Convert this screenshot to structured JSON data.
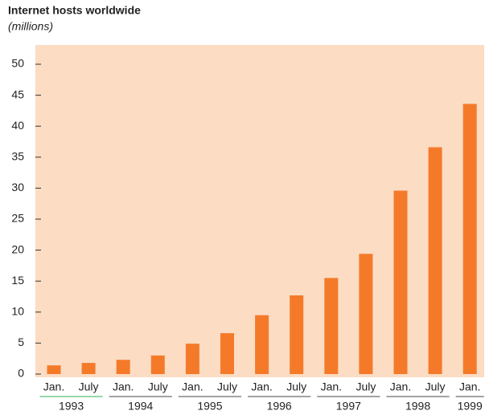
{
  "chart_data": {
    "type": "bar",
    "title": "Internet hosts worldwide",
    "subtitle": "(millions)",
    "color": "#f47a2a",
    "background": "#fcdcc3",
    "groups": [
      {
        "label": "1993",
        "categories": [
          "Jan.",
          "July"
        ],
        "values": [
          1.4,
          1.8
        ]
      },
      {
        "label": "1994",
        "categories": [
          "Jan.",
          "July"
        ],
        "values": [
          2.3,
          3.0
        ]
      },
      {
        "label": "1995",
        "categories": [
          "Jan.",
          "July"
        ],
        "values": [
          4.9,
          6.6
        ]
      },
      {
        "label": "1996",
        "categories": [
          "Jan.",
          "July"
        ],
        "values": [
          9.5,
          12.7
        ]
      },
      {
        "label": "1997",
        "categories": [
          "Jan.",
          "July"
        ],
        "values": [
          15.5,
          19.4
        ]
      },
      {
        "label": "1998",
        "categories": [
          "Jan.",
          "July"
        ],
        "values": [
          29.6,
          36.6
        ]
      },
      {
        "label": "1999",
        "categories": [
          "Jan."
        ],
        "values": [
          43.6
        ]
      }
    ],
    "ylim": [
      0,
      50
    ],
    "yticks": [
      0,
      5,
      10,
      15,
      20,
      25,
      30,
      35,
      40,
      45,
      50
    ]
  }
}
